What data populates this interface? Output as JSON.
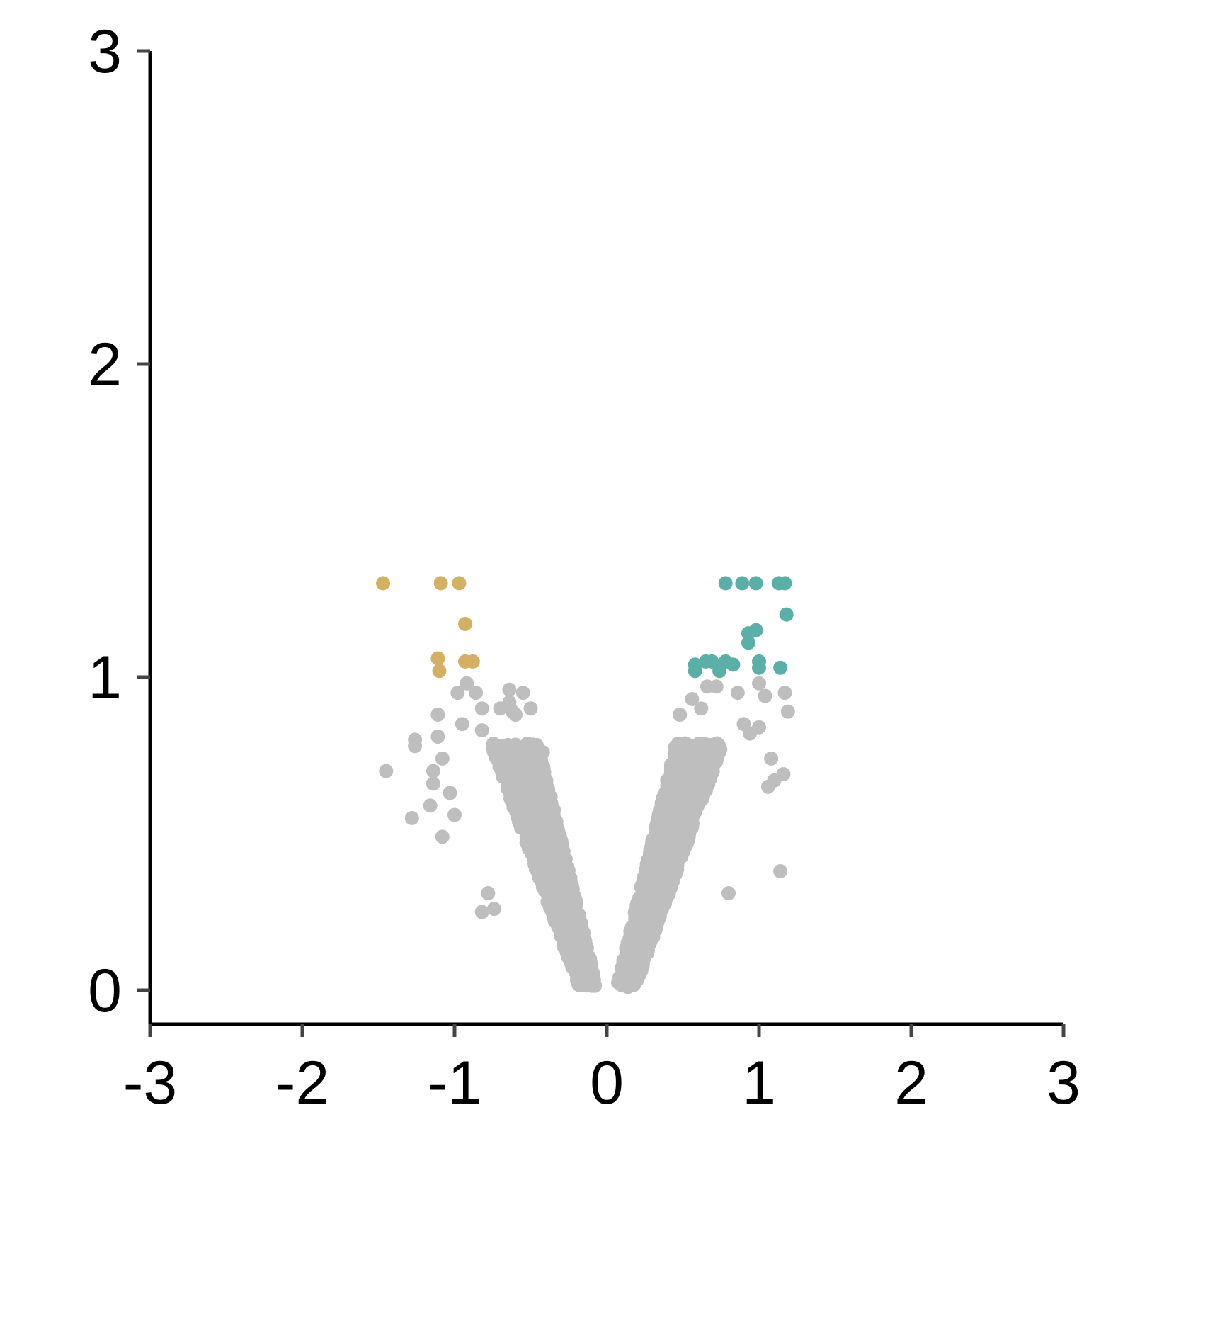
{
  "chart_data": {
    "type": "scatter",
    "title": "",
    "xlabel": "",
    "ylabel": "",
    "xlim": [
      -3,
      3
    ],
    "ylim": [
      -0.1,
      3
    ],
    "x_ticks": [
      "-3",
      "-2",
      "-1",
      "0",
      "1",
      "2",
      "3"
    ],
    "y_ticks": [
      "0",
      "1",
      "2",
      "3"
    ],
    "grid": false,
    "legend": "none",
    "colors": {
      "not_significant": "#bebebe",
      "down": "#d4b062",
      "up": "#5ab0a6",
      "axis": "#000000"
    },
    "series": [
      {
        "category": "down",
        "points": [
          [
            -1.47,
            1.3
          ],
          [
            -1.09,
            1.3
          ],
          [
            -0.97,
            1.3
          ],
          [
            -0.93,
            1.17
          ],
          [
            -1.11,
            1.06
          ],
          [
            -0.93,
            1.05
          ],
          [
            -0.88,
            1.05
          ],
          [
            -1.1,
            1.02
          ]
        ]
      },
      {
        "category": "up",
        "points": [
          [
            0.78,
            1.3
          ],
          [
            0.89,
            1.3
          ],
          [
            0.98,
            1.3
          ],
          [
            1.13,
            1.3
          ],
          [
            1.17,
            1.3
          ],
          [
            1.18,
            1.2
          ],
          [
            0.98,
            1.15
          ],
          [
            0.93,
            1.14
          ],
          [
            0.93,
            1.11
          ],
          [
            0.58,
            1.04
          ],
          [
            0.58,
            1.02
          ],
          [
            0.65,
            1.05
          ],
          [
            0.69,
            1.05
          ],
          [
            0.74,
            1.02
          ],
          [
            0.78,
            1.05
          ],
          [
            0.83,
            1.04
          ],
          [
            1.0,
            1.05
          ],
          [
            1.0,
            1.03
          ],
          [
            1.14,
            1.03
          ]
        ]
      },
      {
        "category": "not_significant",
        "description": "dense V-shaped cloud centred at x=0; outlying points listed",
        "points": [
          [
            -1.45,
            0.7
          ],
          [
            -1.28,
            0.55
          ],
          [
            -1.26,
            0.78
          ],
          [
            -1.26,
            0.8
          ],
          [
            -1.16,
            0.59
          ],
          [
            -1.14,
            0.66
          ],
          [
            -1.14,
            0.7
          ],
          [
            -1.11,
            0.81
          ],
          [
            -1.11,
            0.88
          ],
          [
            -1.08,
            0.49
          ],
          [
            -1.08,
            0.74
          ],
          [
            -1.03,
            0.63
          ],
          [
            -1.0,
            0.56
          ],
          [
            -0.98,
            0.95
          ],
          [
            -0.95,
            0.85
          ],
          [
            -0.92,
            0.98
          ],
          [
            -0.86,
            0.95
          ],
          [
            -0.82,
            0.9
          ],
          [
            -0.82,
            0.83
          ],
          [
            -0.82,
            0.25
          ],
          [
            -0.78,
            0.31
          ],
          [
            -0.74,
            0.26
          ],
          [
            -0.7,
            0.9
          ],
          [
            -0.64,
            0.96
          ],
          [
            -0.64,
            0.92
          ],
          [
            -0.62,
            0.89
          ],
          [
            -0.6,
            0.88
          ],
          [
            -0.55,
            0.95
          ],
          [
            -0.5,
            0.9
          ],
          [
            -0.42,
            0.76
          ],
          [
            0.48,
            0.88
          ],
          [
            0.56,
            0.93
          ],
          [
            0.62,
            0.9
          ],
          [
            0.66,
            0.97
          ],
          [
            0.72,
            0.97
          ],
          [
            0.8,
            0.31
          ],
          [
            0.86,
            0.95
          ],
          [
            0.9,
            0.85
          ],
          [
            0.94,
            0.82
          ],
          [
            1.0,
            0.98
          ],
          [
            1.0,
            0.84
          ],
          [
            1.04,
            0.94
          ],
          [
            1.06,
            0.65
          ],
          [
            1.08,
            0.74
          ],
          [
            1.1,
            0.67
          ],
          [
            1.14,
            0.38
          ],
          [
            1.16,
            0.69
          ],
          [
            1.17,
            0.95
          ],
          [
            1.19,
            0.89
          ]
        ]
      }
    ]
  }
}
